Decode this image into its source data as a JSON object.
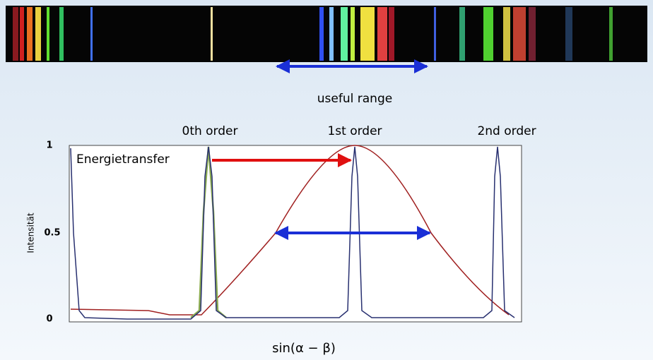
{
  "range_label": "useful range",
  "orders": [
    "0th order",
    "1st order",
    "2nd order"
  ],
  "plot": {
    "annotation": "Energietransfer",
    "y_axis_label": "Intensität",
    "y_tick_labels": [
      "1",
      "0.5",
      "0"
    ],
    "x_axis_label": "sin(α − β)"
  }
}
